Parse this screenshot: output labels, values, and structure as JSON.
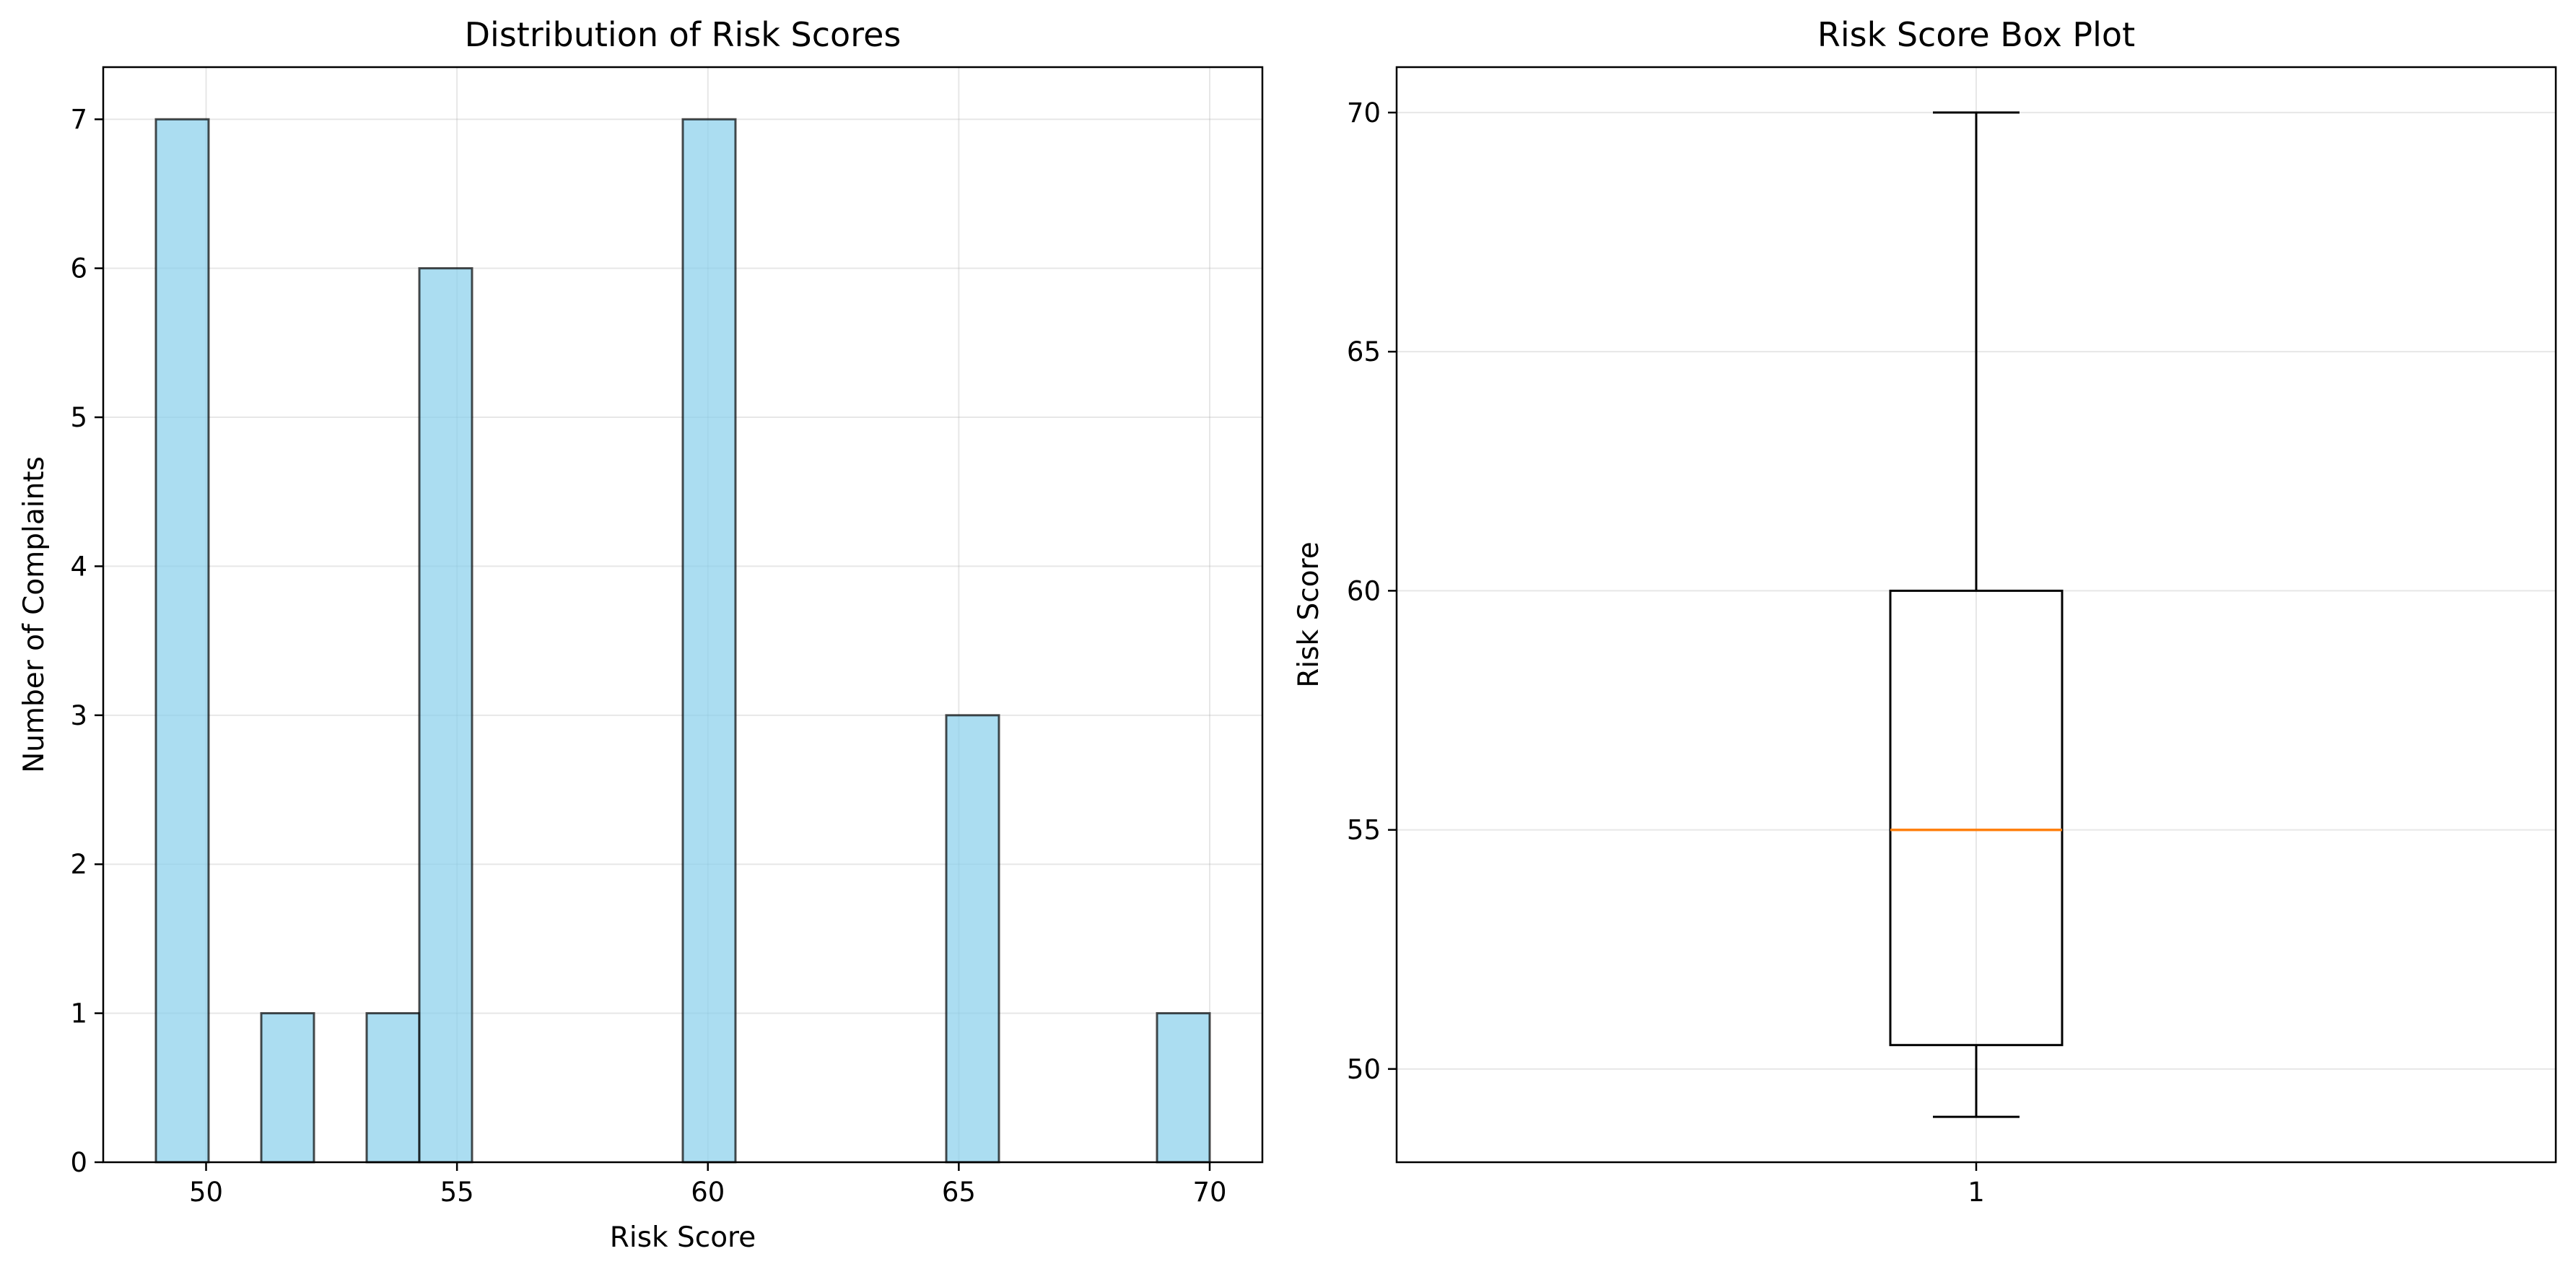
{
  "chart_data": [
    {
      "type": "bar",
      "title": "Distribution of Risk Scores",
      "xlabel": "Risk Score",
      "ylabel": "Number of Complaints",
      "xlim": [
        47.95,
        71.05
      ],
      "ylim": [
        0,
        7.35
      ],
      "xticks": [
        50,
        55,
        60,
        65,
        70
      ],
      "yticks": [
        0,
        1,
        2,
        3,
        4,
        5,
        6,
        7
      ],
      "grid": true,
      "bins": [
        {
          "x0": 49.0,
          "x1": 50.05,
          "count": 7
        },
        {
          "x0": 50.05,
          "x1": 51.1,
          "count": 0
        },
        {
          "x0": 51.1,
          "x1": 52.15,
          "count": 1
        },
        {
          "x0": 52.15,
          "x1": 53.2,
          "count": 0
        },
        {
          "x0": 53.2,
          "x1": 54.25,
          "count": 1
        },
        {
          "x0": 54.25,
          "x1": 55.3,
          "count": 6
        },
        {
          "x0": 55.3,
          "x1": 56.35,
          "count": 0
        },
        {
          "x0": 56.35,
          "x1": 57.4,
          "count": 0
        },
        {
          "x0": 57.4,
          "x1": 58.45,
          "count": 0
        },
        {
          "x0": 58.45,
          "x1": 59.5,
          "count": 0
        },
        {
          "x0": 59.5,
          "x1": 60.55,
          "count": 7
        },
        {
          "x0": 60.55,
          "x1": 61.6,
          "count": 0
        },
        {
          "x0": 61.6,
          "x1": 62.65,
          "count": 0
        },
        {
          "x0": 62.65,
          "x1": 63.7,
          "count": 0
        },
        {
          "x0": 63.7,
          "x1": 64.75,
          "count": 0
        },
        {
          "x0": 64.75,
          "x1": 65.8,
          "count": 3
        },
        {
          "x0": 65.8,
          "x1": 66.85,
          "count": 0
        },
        {
          "x0": 66.85,
          "x1": 67.9,
          "count": 0
        },
        {
          "x0": 67.9,
          "x1": 68.95,
          "count": 0
        },
        {
          "x0": 68.95,
          "x1": 70.0,
          "count": 1
        }
      ],
      "colors": {
        "bar_fill": "#87CEEB",
        "bar_alpha": 0.7,
        "bar_edge": "#000000"
      }
    },
    {
      "type": "box",
      "title": "Risk Score Box Plot",
      "xlabel": "",
      "ylabel": "Risk Score",
      "ylim": [
        48.05,
        70.95
      ],
      "yticks": [
        50,
        55,
        60,
        65,
        70
      ],
      "xticks": [
        "1"
      ],
      "grid": true,
      "box": {
        "position": 1,
        "whisker_low": 49,
        "q1": 50.5,
        "median": 55,
        "q3": 60,
        "whisker_high": 70
      },
      "colors": {
        "median": "#ff7f0e",
        "box": "#000000"
      }
    }
  ]
}
